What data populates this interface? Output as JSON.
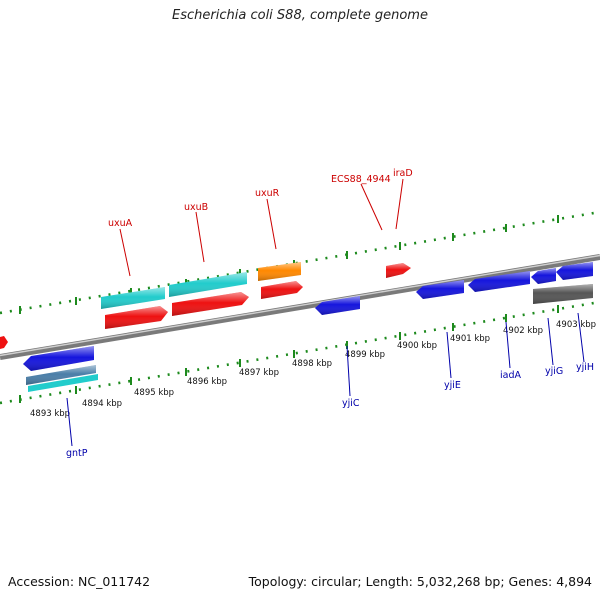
{
  "title": "Escherichia coli S88, complete genome",
  "footer": {
    "accession": "Accession: NC_011742",
    "summary": "Topology: circular; Length: 5,032,268 bp; Genes: 4,894"
  },
  "colors": {
    "backbone": "#8c8c8c",
    "tick": "#1d8a1d",
    "forward_label": "#cc0000",
    "reverse_label": "#0000aa",
    "red": "#ee1111",
    "cyan": "#22cccc",
    "orange": "#ff8800",
    "blue": "#1515dd",
    "gray": "#555555",
    "steel": "#4a7ea8"
  },
  "kbp_labels": [
    "4893 kbp",
    "4894 kbp",
    "4895 kbp",
    "4896 kbp",
    "4897 kbp",
    "4898 kbp",
    "4899 kbp",
    "4900 kbp",
    "4901 kbp",
    "4902 kbp",
    "4903 kbp"
  ],
  "forward_gene_labels": [
    "uxuA",
    "uxuB",
    "uxuR",
    "ECS88_4944",
    "iraD"
  ],
  "reverse_gene_labels": [
    "gntP",
    "yjiC",
    "yjiE",
    "iadA",
    "yjiG",
    "yjiH"
  ]
}
